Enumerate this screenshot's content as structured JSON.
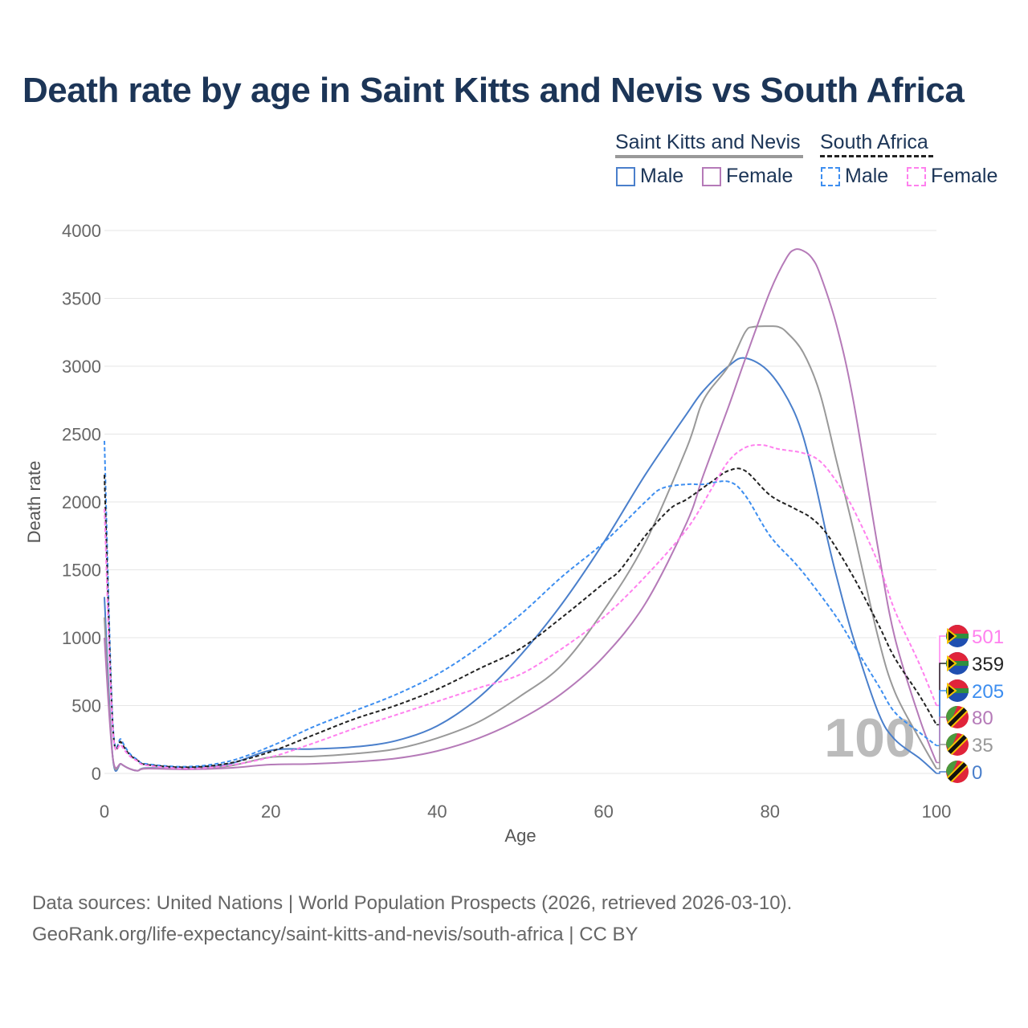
{
  "title": "Death rate by age in Saint Kitts and Nevis vs South Africa",
  "legend": {
    "group1": "Saint Kitts and Nevis",
    "group2": "South Africa",
    "male": "Male",
    "female": "Female"
  },
  "footer": {
    "line1": "Data sources: United Nations | World Population Prospects (2026, retrieved 2026-03-10).",
    "line2": "GeoRank.org/life-expectancy/saint-kitts-and-nevis/south-africa | CC BY"
  },
  "chart_data": {
    "type": "line",
    "title": "Death rate by age in Saint Kitts and Nevis vs South Africa",
    "xlabel": "Age",
    "ylabel": "Death rate",
    "xlim": [
      0,
      100
    ],
    "ylim": [
      0,
      4000
    ],
    "xticks": [
      "0",
      "20",
      "40",
      "60",
      "80",
      "100"
    ],
    "yticks": [
      "0",
      "500",
      "1000",
      "1500",
      "2000",
      "2500",
      "3000",
      "3500",
      "4000"
    ],
    "watermark": "100",
    "series": [
      {
        "name": "South Africa Female",
        "color": "#ff80ee",
        "dashed": true,
        "end_label": "501",
        "flag": "south-africa",
        "points": [
          [
            0,
            1950
          ],
          [
            1,
            330
          ],
          [
            2,
            210
          ],
          [
            3,
            130
          ],
          [
            4,
            90
          ],
          [
            5,
            60
          ],
          [
            10,
            35
          ],
          [
            15,
            60
          ],
          [
            20,
            120
          ],
          [
            25,
            220
          ],
          [
            30,
            330
          ],
          [
            35,
            430
          ],
          [
            40,
            530
          ],
          [
            45,
            630
          ],
          [
            50,
            730
          ],
          [
            55,
            920
          ],
          [
            60,
            1150
          ],
          [
            65,
            1450
          ],
          [
            70,
            1800
          ],
          [
            73,
            2100
          ],
          [
            75,
            2300
          ],
          [
            77,
            2400
          ],
          [
            79,
            2420
          ],
          [
            81,
            2390
          ],
          [
            84,
            2360
          ],
          [
            86,
            2300
          ],
          [
            88,
            2150
          ],
          [
            90,
            1950
          ],
          [
            93,
            1550
          ],
          [
            95,
            1200
          ],
          [
            98,
            800
          ],
          [
            100,
            501
          ]
        ]
      },
      {
        "name": "South Africa Total",
        "color": "#222222",
        "dashed": true,
        "end_label": "359",
        "flag": "south-africa",
        "points": [
          [
            0,
            2200
          ],
          [
            1,
            350
          ],
          [
            2,
            230
          ],
          [
            3,
            140
          ],
          [
            4,
            95
          ],
          [
            5,
            65
          ],
          [
            10,
            45
          ],
          [
            15,
            75
          ],
          [
            20,
            160
          ],
          [
            25,
            280
          ],
          [
            30,
            400
          ],
          [
            35,
            500
          ],
          [
            40,
            620
          ],
          [
            45,
            770
          ],
          [
            50,
            920
          ],
          [
            55,
            1150
          ],
          [
            60,
            1400
          ],
          [
            62,
            1500
          ],
          [
            65,
            1750
          ],
          [
            68,
            1950
          ],
          [
            70,
            2020
          ],
          [
            73,
            2150
          ],
          [
            75,
            2230
          ],
          [
            77,
            2230
          ],
          [
            80,
            2050
          ],
          [
            83,
            1950
          ],
          [
            85,
            1880
          ],
          [
            87,
            1750
          ],
          [
            90,
            1450
          ],
          [
            93,
            1100
          ],
          [
            95,
            850
          ],
          [
            98,
            570
          ],
          [
            100,
            359
          ]
        ]
      },
      {
        "name": "South Africa Male",
        "color": "#3d8ef0",
        "dashed": true,
        "end_label": "205",
        "flag": "south-africa",
        "points": [
          [
            0,
            2450
          ],
          [
            1,
            380
          ],
          [
            2,
            250
          ],
          [
            3,
            150
          ],
          [
            4,
            100
          ],
          [
            5,
            70
          ],
          [
            10,
            50
          ],
          [
            15,
            90
          ],
          [
            20,
            200
          ],
          [
            25,
            340
          ],
          [
            30,
            460
          ],
          [
            35,
            580
          ],
          [
            40,
            730
          ],
          [
            45,
            930
          ],
          [
            50,
            1170
          ],
          [
            55,
            1450
          ],
          [
            60,
            1700
          ],
          [
            65,
            2000
          ],
          [
            67,
            2100
          ],
          [
            70,
            2130
          ],
          [
            72,
            2130
          ],
          [
            75,
            2150
          ],
          [
            77,
            2050
          ],
          [
            80,
            1750
          ],
          [
            83,
            1550
          ],
          [
            85,
            1400
          ],
          [
            88,
            1150
          ],
          [
            90,
            950
          ],
          [
            93,
            650
          ],
          [
            95,
            450
          ],
          [
            98,
            300
          ],
          [
            100,
            205
          ]
        ]
      },
      {
        "name": "Saint Kitts and Nevis Female",
        "color": "#b57ab8",
        "dashed": false,
        "end_label": "80",
        "flag": "saint-kitts-and-nevis",
        "points": [
          [
            0,
            1000
          ],
          [
            1,
            120
          ],
          [
            2,
            70
          ],
          [
            3,
            35
          ],
          [
            4,
            20
          ],
          [
            5,
            35
          ],
          [
            10,
            30
          ],
          [
            15,
            40
          ],
          [
            20,
            65
          ],
          [
            25,
            70
          ],
          [
            30,
            85
          ],
          [
            35,
            110
          ],
          [
            40,
            165
          ],
          [
            45,
            260
          ],
          [
            50,
            400
          ],
          [
            55,
            590
          ],
          [
            60,
            860
          ],
          [
            65,
            1250
          ],
          [
            70,
            1850
          ],
          [
            72,
            2200
          ],
          [
            75,
            2700
          ],
          [
            77,
            3050
          ],
          [
            80,
            3550
          ],
          [
            82,
            3800
          ],
          [
            83,
            3860
          ],
          [
            84,
            3850
          ],
          [
            85,
            3800
          ],
          [
            86,
            3680
          ],
          [
            88,
            3300
          ],
          [
            90,
            2750
          ],
          [
            93,
            1650
          ],
          [
            95,
            1000
          ],
          [
            98,
            400
          ],
          [
            100,
            80
          ]
        ]
      },
      {
        "name": "Saint Kitts and Nevis Total",
        "color": "#999999",
        "dashed": false,
        "end_label": "35",
        "flag": "saint-kitts-and-nevis",
        "points": [
          [
            0,
            1150
          ],
          [
            1,
            120
          ],
          [
            2,
            70
          ],
          [
            3,
            35
          ],
          [
            4,
            20
          ],
          [
            5,
            38
          ],
          [
            10,
            35
          ],
          [
            15,
            55
          ],
          [
            20,
            120
          ],
          [
            25,
            125
          ],
          [
            30,
            145
          ],
          [
            35,
            180
          ],
          [
            40,
            260
          ],
          [
            45,
            380
          ],
          [
            50,
            570
          ],
          [
            55,
            800
          ],
          [
            60,
            1200
          ],
          [
            65,
            1700
          ],
          [
            70,
            2400
          ],
          [
            72,
            2750
          ],
          [
            75,
            3000
          ],
          [
            77,
            3250
          ],
          [
            78,
            3290
          ],
          [
            80,
            3295
          ],
          [
            81,
            3290
          ],
          [
            82,
            3250
          ],
          [
            84,
            3100
          ],
          [
            86,
            2800
          ],
          [
            88,
            2300
          ],
          [
            90,
            1800
          ],
          [
            93,
            1000
          ],
          [
            95,
            600
          ],
          [
            98,
            250
          ],
          [
            100,
            35
          ]
        ]
      },
      {
        "name": "Saint Kitts and Nevis Male",
        "color": "#4a7fcb",
        "dashed": false,
        "end_label": "0",
        "flag": "saint-kitts-and-nevis",
        "points": [
          [
            0,
            1300
          ],
          [
            1,
            120
          ],
          [
            2,
            70
          ],
          [
            3,
            35
          ],
          [
            4,
            20
          ],
          [
            5,
            40
          ],
          [
            10,
            40
          ],
          [
            15,
            70
          ],
          [
            20,
            170
          ],
          [
            25,
            180
          ],
          [
            30,
            195
          ],
          [
            35,
            240
          ],
          [
            40,
            350
          ],
          [
            45,
            560
          ],
          [
            50,
            870
          ],
          [
            55,
            1250
          ],
          [
            60,
            1700
          ],
          [
            65,
            2200
          ],
          [
            70,
            2650
          ],
          [
            72,
            2820
          ],
          [
            75,
            3000
          ],
          [
            77,
            3060
          ],
          [
            80,
            2950
          ],
          [
            83,
            2650
          ],
          [
            85,
            2250
          ],
          [
            87,
            1700
          ],
          [
            88,
            1450
          ],
          [
            90,
            1000
          ],
          [
            93,
            450
          ],
          [
            95,
            250
          ],
          [
            98,
            110
          ],
          [
            100,
            0
          ]
        ]
      }
    ]
  }
}
